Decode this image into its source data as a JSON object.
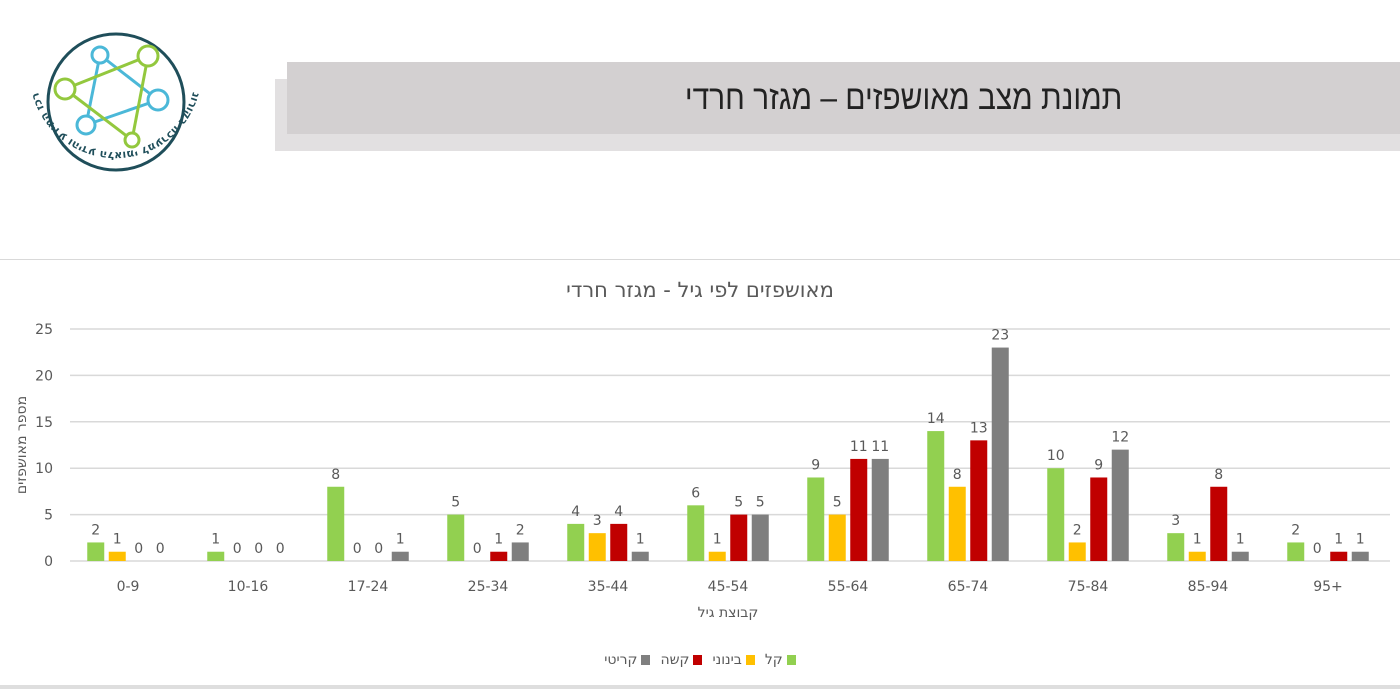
{
  "header": {
    "logo": {
      "icon": "network-star-logo-icon",
      "caption": "מרכז המידע והידע הלאומי למערכה בקורונה"
    },
    "title": "תמונת מצב מאושפזים – מגזר חרדי"
  },
  "chart_data": {
    "type": "bar",
    "title": "מאושפזים לפי גיל - מגזר חרדי",
    "xlabel": "קבוצת גיל",
    "ylabel": "מספר מאושפזים",
    "ylim": [
      0,
      25
    ],
    "yticks": [
      0,
      5,
      10,
      15,
      20,
      25
    ],
    "grid": true,
    "legend_position": "bottom",
    "categories": [
      "0-9",
      "10-16",
      "17-24",
      "25-34",
      "35-44",
      "45-54",
      "55-64",
      "65-74",
      "75-84",
      "85-94",
      "95+"
    ],
    "series": [
      {
        "name": "קל",
        "color": "#92d050",
        "values": [
          2,
          1,
          8,
          5,
          4,
          6,
          9,
          14,
          10,
          3,
          2
        ]
      },
      {
        "name": "בינוני",
        "color": "#ffc000",
        "values": [
          1,
          0,
          0,
          0,
          3,
          1,
          5,
          8,
          2,
          1,
          0
        ]
      },
      {
        "name": "קשה",
        "color": "#c00000",
        "values": [
          0,
          0,
          0,
          1,
          4,
          5,
          11,
          13,
          9,
          8,
          1
        ]
      },
      {
        "name": "קריטי",
        "color": "#7f7f7f",
        "values": [
          0,
          0,
          1,
          2,
          1,
          5,
          11,
          23,
          12,
          1,
          1
        ]
      }
    ],
    "data_labels": true
  },
  "colors": {
    "title_bar": "#d3d0d1",
    "title_shadow": "#e2e0e1",
    "gridline": "#d9d9d9",
    "axis_text": "#595959"
  }
}
